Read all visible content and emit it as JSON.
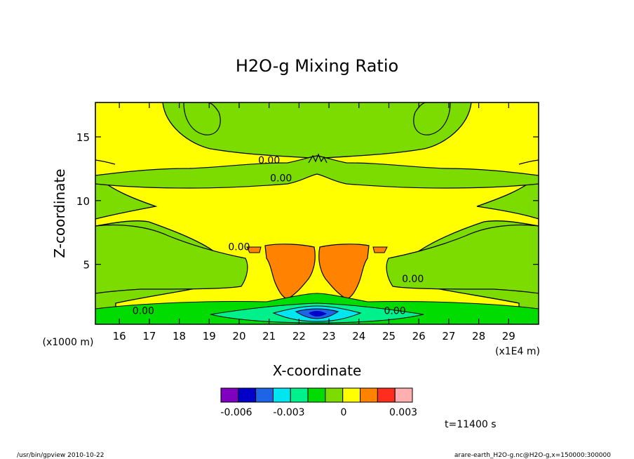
{
  "chart_data": {
    "type": "heatmap",
    "title": "H2O-g Mixing Ratio",
    "xlabel": "X-coordinate",
    "ylabel": "Z-coordinate",
    "x_unit": "(x1E4 m)",
    "y_unit": "(x1000 m)",
    "xlim": [
      15.2,
      30.0
    ],
    "ylim": [
      0.3,
      17.7
    ],
    "x_ticks": [
      16,
      17,
      18,
      19,
      20,
      21,
      22,
      23,
      24,
      25,
      26,
      27,
      28,
      29
    ],
    "y_ticks": [
      5,
      10,
      15
    ],
    "contour_labels": [
      {
        "text": "0.00",
        "x": 20.0,
        "y": 6.1
      },
      {
        "text": "0.00",
        "x": 21.0,
        "y": 12.9
      },
      {
        "text": "0.00",
        "x": 21.4,
        "y": 11.5
      },
      {
        "text": "0.00",
        "x": 16.8,
        "y": 1.1
      },
      {
        "text": "0.00",
        "x": 25.2,
        "y": 1.1
      },
      {
        "text": "0.00",
        "x": 25.8,
        "y": 3.6
      }
    ],
    "colorbar": {
      "colors": [
        "#7f00bf",
        "#0000c8",
        "#1e64e6",
        "#00e6f0",
        "#00f08c",
        "#00dc00",
        "#7cdc00",
        "#ffff00",
        "#ff8200",
        "#ff2d1e",
        "#ffafaf"
      ],
      "tick_labels": [
        "-0.006",
        "-0.003",
        "0",
        "0.003"
      ]
    },
    "time_label": "t=11400 s"
  },
  "footer": {
    "left": "/usr/bin/gpview  2010-10-22",
    "right": "arare-earth_H2O-g.nc@H2O-g,x=150000:300000"
  }
}
